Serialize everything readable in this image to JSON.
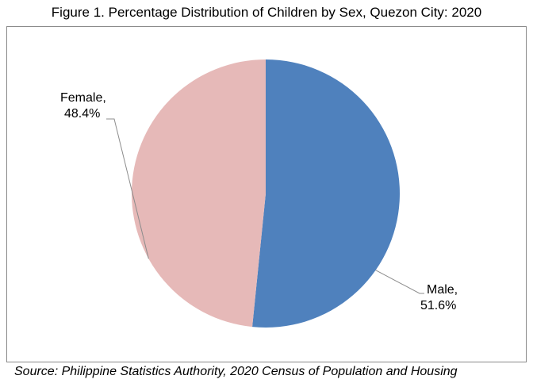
{
  "chart_data": {
    "type": "pie",
    "title": "Figure 1. Percentage Distribution of Children by Sex, Quezon City: 2020",
    "slices": [
      {
        "name": "Male",
        "value": 51.6,
        "label": "Male,",
        "value_text": "51.6%",
        "color": "#4f81bd"
      },
      {
        "name": "Female",
        "value": 48.4,
        "label": "Female,",
        "value_text": "48.4%",
        "color": "#e6b9b8"
      }
    ],
    "start_angle_deg": 0,
    "direction": "clockwise",
    "legend": "none",
    "source": "Source: Philippine Statistics Authority, 2020 Census of Population and Housing"
  }
}
